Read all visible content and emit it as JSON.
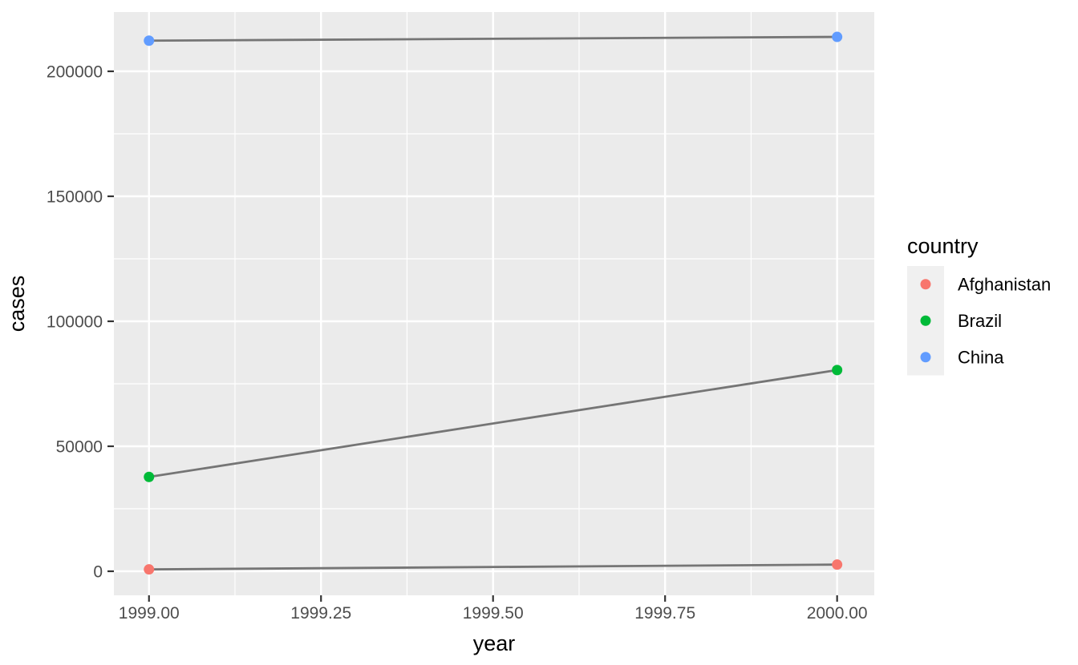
{
  "chart_data": {
    "type": "line",
    "title": "",
    "xlabel": "year",
    "ylabel": "cases",
    "legend_title": "country",
    "legend_position": "right",
    "grid": true,
    "xlim": [
      1998.949,
      2000.054
    ],
    "ylim": [
      -9615,
      223718
    ],
    "x_ticks": [
      {
        "value": 1999.0,
        "label": "1999.00"
      },
      {
        "value": 1999.25,
        "label": "1999.25"
      },
      {
        "value": 1999.5,
        "label": "1999.50"
      },
      {
        "value": 1999.75,
        "label": "1999.75"
      },
      {
        "value": 2000.0,
        "label": "2000.00"
      }
    ],
    "y_ticks": [
      {
        "value": 0,
        "label": "0"
      },
      {
        "value": 50000,
        "label": "50000"
      },
      {
        "value": 100000,
        "label": "100000"
      },
      {
        "value": 150000,
        "label": "150000"
      },
      {
        "value": 200000,
        "label": "200000"
      }
    ],
    "x_minor": [
      1999.125,
      1999.375,
      1999.625,
      1999.875
    ],
    "y_minor": [
      25000,
      75000,
      125000,
      175000
    ],
    "series": [
      {
        "name": "Afghanistan",
        "color": "#F8766D",
        "x": [
          1999,
          2000
        ],
        "y": [
          745,
          2666
        ]
      },
      {
        "name": "Brazil",
        "color": "#00BA38",
        "x": [
          1999,
          2000
        ],
        "y": [
          37737,
          80488
        ]
      },
      {
        "name": "China",
        "color": "#619CFF",
        "x": [
          1999,
          2000
        ],
        "y": [
          212258,
          213766
        ]
      }
    ],
    "colors": {
      "panel_background": "#EBEBEB",
      "grid": "#FFFFFF",
      "connector_line": "#757575",
      "tick_mark": "#333333",
      "tick_label": "#4D4D4D",
      "axis_title": "#000000",
      "legend_key_background": "#F0F0F0",
      "legend_text": "#000000",
      "figure_background": "#FFFFFF"
    }
  }
}
